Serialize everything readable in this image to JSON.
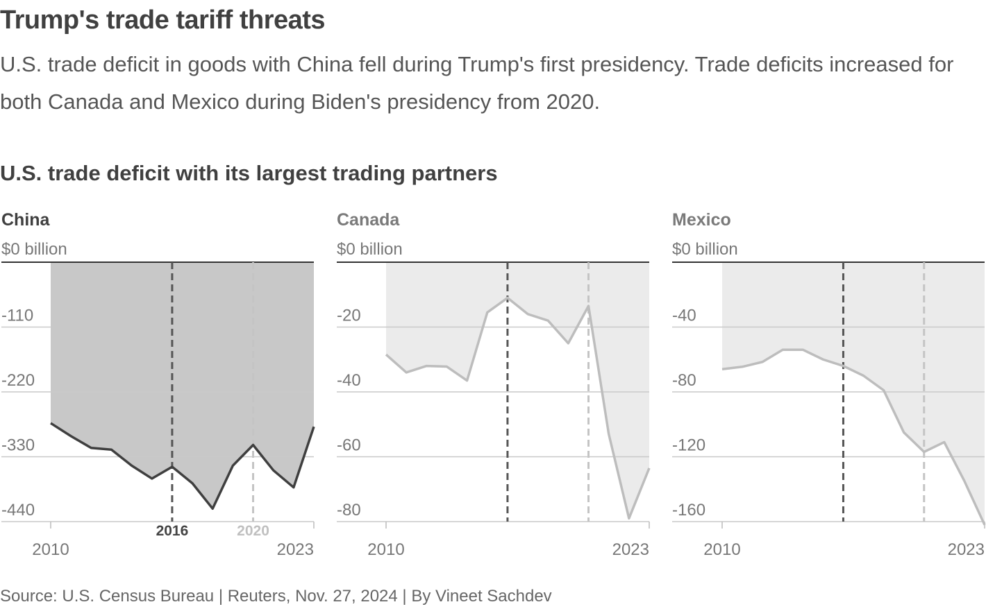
{
  "header": {
    "title": "Trump's trade tariff threats",
    "subtitle": "U.S. trade deficit in goods with China fell during Trump's first presidency. Trade deficits increased for both Canada and Mexico during Biden's presidency from 2020."
  },
  "chart_heading": "U.S. trade deficit with its largest trading partners",
  "footer": {
    "source": "Source: U.S. Census Bureau | Reuters, Nov. 27, 2024 | By Vineet Sachdev"
  },
  "colors": {
    "china_line": "#3f3f3f",
    "china_area": "#c8c8c8",
    "other_line": "#bdbdbd",
    "other_area": "#ebebeb",
    "trump_marker": "#555555",
    "biden_marker": "#c4c4c4",
    "grid": "#c9c9c9"
  },
  "chart_data": [
    {
      "type": "area",
      "panel_title": "China",
      "unit_label": "$0 billion",
      "x": [
        2010,
        2011,
        2012,
        2013,
        2014,
        2015,
        2016,
        2017,
        2018,
        2019,
        2020,
        2021,
        2022,
        2023
      ],
      "values": [
        -273,
        -295,
        -315,
        -318,
        -345,
        -367,
        -347,
        -375,
        -418,
        -345,
        -310,
        -353,
        -382,
        -279
      ],
      "ylim": [
        -440,
        0
      ],
      "yticks": [
        -110,
        -220,
        -330,
        -440
      ],
      "ytick_labels": [
        "-110",
        "-220",
        "-330",
        "-440"
      ],
      "xtick_labels": [
        "2010",
        "2023"
      ],
      "markers": [
        {
          "year": 2016,
          "label": "2016"
        },
        {
          "year": 2020,
          "label": "2020"
        }
      ]
    },
    {
      "type": "area",
      "panel_title": "Canada",
      "unit_label": "$0 billion",
      "x": [
        2010,
        2011,
        2012,
        2013,
        2014,
        2015,
        2016,
        2017,
        2018,
        2019,
        2020,
        2021,
        2022,
        2023
      ],
      "values": [
        -28.5,
        -34,
        -32,
        -32.2,
        -36.5,
        -15.5,
        -11,
        -16,
        -18,
        -25,
        -13.5,
        -53,
        -79,
        -63.5
      ],
      "ylim": [
        -80,
        0
      ],
      "yticks": [
        -20,
        -40,
        -60,
        -80
      ],
      "ytick_labels": [
        "-20",
        "-40",
        "-60",
        "-80"
      ],
      "xtick_labels": [
        "2010",
        "2023"
      ],
      "markers": [
        {
          "year": 2016,
          "label": ""
        },
        {
          "year": 2020,
          "label": ""
        }
      ]
    },
    {
      "type": "area",
      "panel_title": "Mexico",
      "unit_label": "$0 billion",
      "x": [
        2010,
        2011,
        2012,
        2013,
        2014,
        2015,
        2016,
        2017,
        2018,
        2019,
        2020,
        2021,
        2022,
        2023
      ],
      "values": [
        -66,
        -64.5,
        -61.5,
        -54,
        -54,
        -60,
        -64,
        -70,
        -79,
        -105,
        -117,
        -111,
        -135,
        -162
      ],
      "ylim": [
        -160,
        0
      ],
      "yticks": [
        -40,
        -80,
        -120,
        -160
      ],
      "ytick_labels": [
        "-40",
        "-80",
        "-120",
        "-160"
      ],
      "xtick_labels": [
        "2010",
        "2023"
      ],
      "markers": [
        {
          "year": 2016,
          "label": ""
        },
        {
          "year": 2020,
          "label": ""
        }
      ]
    }
  ]
}
